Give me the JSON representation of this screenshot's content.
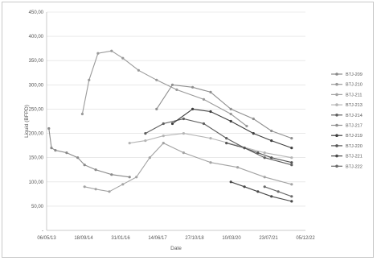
{
  "chart_data": {
    "type": "line",
    "title": "",
    "xlabel": "Date",
    "ylabel": "Liquid (BFPD)",
    "x_ticks": [
      "06/05/13",
      "18/09/14",
      "31/01/16",
      "14/06/17",
      "27/10/18",
      "10/03/20",
      "23/07/21",
      "05/12/22"
    ],
    "y_ticks": [
      "-",
      "50,00",
      "100,00",
      "150,00",
      "200,00",
      "250,00",
      "300,00",
      "350,00",
      "400,00",
      "450,00"
    ],
    "ylim": [
      0,
      450
    ],
    "grid": "horizontal",
    "legend_position": "right",
    "series": [
      {
        "name": "BTJ-209",
        "color": "#8a8a8a",
        "points": [
          [
            "2013-06-05",
            210
          ],
          [
            "2013-07-10",
            170
          ],
          [
            "2013-09-01",
            165
          ],
          [
            "2014-02-01",
            160
          ],
          [
            "2014-07-01",
            150
          ],
          [
            "2014-10-01",
            135
          ],
          [
            "2015-03-01",
            125
          ],
          [
            "2015-10-01",
            115
          ],
          [
            "2016-06-01",
            110
          ]
        ]
      },
      {
        "name": "BTJ-210",
        "color": "#999999",
        "points": [
          [
            "2014-09-01",
            240
          ],
          [
            "2014-12-01",
            310
          ],
          [
            "2015-04-01",
            365
          ],
          [
            "2015-10-01",
            370
          ],
          [
            "2016-03-01",
            355
          ],
          [
            "2016-10-01",
            330
          ],
          [
            "2017-06-01",
            310
          ],
          [
            "2018-03-01",
            290
          ],
          [
            "2019-03-01",
            270
          ],
          [
            "2020-03-01",
            240
          ],
          [
            "2020-10-01",
            215
          ]
        ]
      },
      {
        "name": "BTJ-211",
        "color": "#a3a3a3",
        "points": [
          [
            "2014-10-01",
            90
          ],
          [
            "2015-03-01",
            85
          ],
          [
            "2015-09-01",
            80
          ],
          [
            "2016-03-01",
            95
          ],
          [
            "2016-09-01",
            110
          ],
          [
            "2017-03-01",
            150
          ],
          [
            "2017-09-01",
            180
          ],
          [
            "2018-06-01",
            160
          ],
          [
            "2019-06-01",
            140
          ],
          [
            "2020-06-01",
            130
          ],
          [
            "2021-06-01",
            110
          ],
          [
            "2022-06-01",
            95
          ]
        ]
      },
      {
        "name": "BTJ-213",
        "color": "#b5b5b5",
        "points": [
          [
            "2016-06-01",
            180
          ],
          [
            "2017-01-01",
            185
          ],
          [
            "2017-09-01",
            195
          ],
          [
            "2018-06-01",
            200
          ],
          [
            "2019-06-01",
            190
          ],
          [
            "2020-06-01",
            175
          ],
          [
            "2021-06-01",
            160
          ],
          [
            "2022-06-01",
            150
          ]
        ]
      },
      {
        "name": "BTJ-214",
        "color": "#5e5e5e",
        "points": [
          [
            "2017-01-01",
            200
          ],
          [
            "2017-09-01",
            220
          ],
          [
            "2018-06-01",
            230
          ],
          [
            "2019-03-01",
            220
          ],
          [
            "2020-01-01",
            190
          ],
          [
            "2020-09-01",
            170
          ],
          [
            "2021-06-01",
            150
          ],
          [
            "2022-06-01",
            135
          ]
        ]
      },
      {
        "name": "BTJ-217",
        "color": "#8f8f8f",
        "points": [
          [
            "2017-06-01",
            250
          ],
          [
            "2018-01-01",
            300
          ],
          [
            "2018-10-01",
            295
          ],
          [
            "2019-06-01",
            285
          ],
          [
            "2020-03-01",
            250
          ],
          [
            "2021-01-01",
            230
          ],
          [
            "2021-09-01",
            205
          ],
          [
            "2022-06-01",
            190
          ]
        ]
      },
      {
        "name": "BTJ-219",
        "color": "#3e3e3e",
        "points": [
          [
            "2018-01-01",
            220
          ],
          [
            "2018-10-01",
            250
          ],
          [
            "2019-06-01",
            245
          ],
          [
            "2020-03-01",
            225
          ],
          [
            "2021-01-01",
            200
          ],
          [
            "2021-09-01",
            185
          ],
          [
            "2022-06-01",
            170
          ]
        ]
      },
      {
        "name": "BTJ-220",
        "color": "#555555",
        "points": [
          [
            "2020-01-01",
            180
          ],
          [
            "2020-09-01",
            170
          ],
          [
            "2021-03-01",
            160
          ],
          [
            "2021-09-01",
            150
          ],
          [
            "2022-06-01",
            140
          ]
        ]
      },
      {
        "name": "BTJ-221",
        "color": "#484848",
        "points": [
          [
            "2020-03-01",
            100
          ],
          [
            "2020-09-01",
            90
          ],
          [
            "2021-03-01",
            80
          ],
          [
            "2021-09-01",
            70
          ],
          [
            "2022-06-01",
            60
          ]
        ]
      },
      {
        "name": "BTJ-222",
        "color": "#6a6a6a",
        "points": [
          [
            "2021-06-01",
            90
          ],
          [
            "2021-12-01",
            80
          ],
          [
            "2022-06-01",
            70
          ]
        ]
      }
    ]
  }
}
